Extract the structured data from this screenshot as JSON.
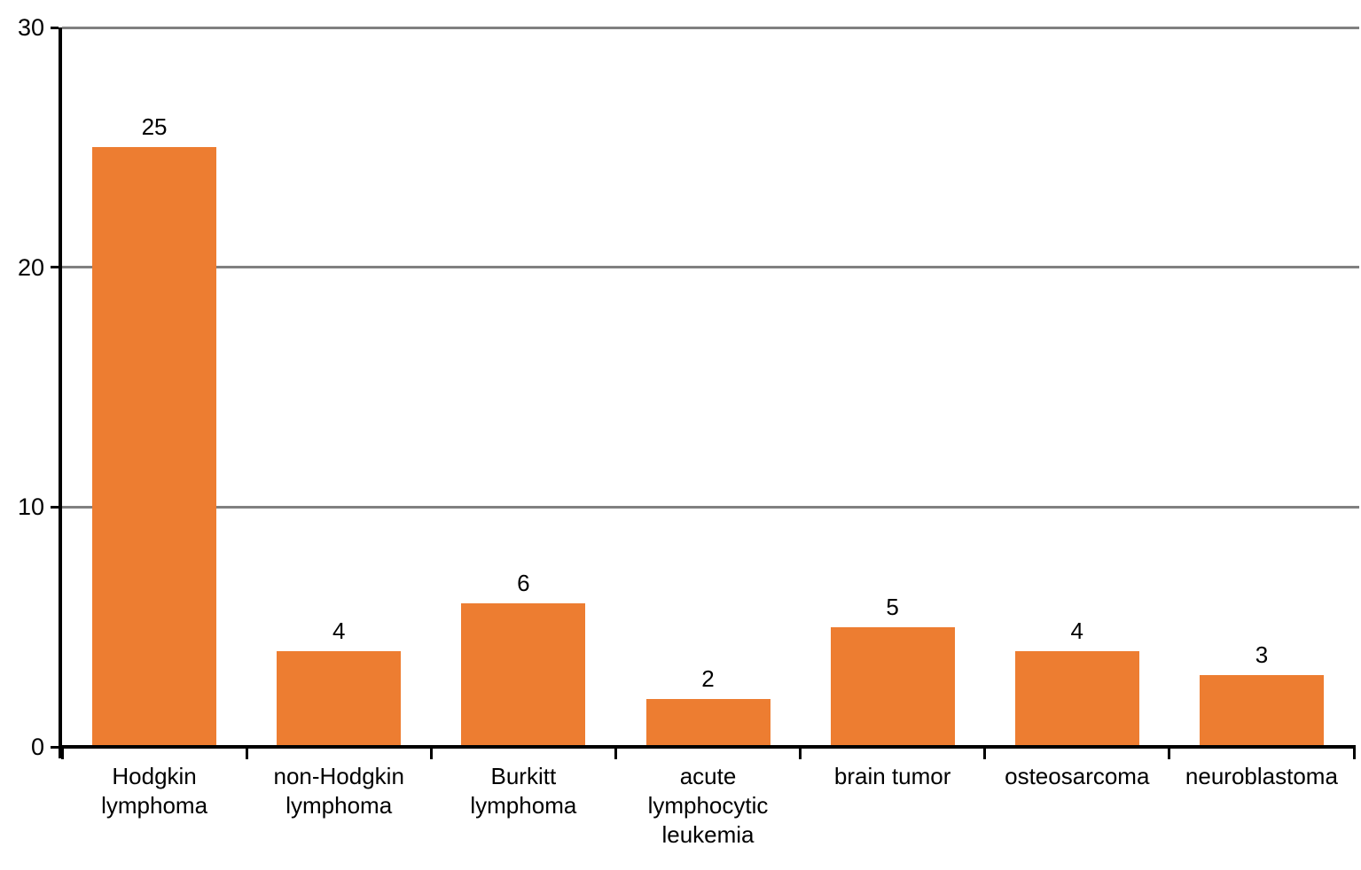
{
  "chart_data": {
    "type": "bar",
    "title": "",
    "xlabel": "",
    "ylabel": "",
    "categories": [
      "Hodgkin lymphoma",
      "non-Hodgkin lymphoma",
      "Burkitt lymphoma",
      "acute lymphocytic leukemia",
      "brain tumor",
      "osteosarcoma",
      "neuroblastoma"
    ],
    "category_labels_multiline": [
      "Hodgkin\nlymphoma",
      "non-Hodgkin\nlymphoma",
      "Burkitt\nlymphoma",
      "acute\nlymphocytic\nleukemia",
      "brain tumor",
      "osteosarcoma",
      "neuroblastoma"
    ],
    "values": [
      25,
      4,
      6,
      2,
      5,
      4,
      3
    ],
    "data_labels": [
      "25",
      "4",
      "6",
      "2",
      "5",
      "4",
      "3"
    ],
    "y_ticks": [
      0,
      10,
      20,
      30
    ],
    "ylim": [
      0,
      30
    ],
    "grid": true,
    "legend": false,
    "colors": {
      "bar": "#ED7D31",
      "gridline": "#808080",
      "axis": "#000000",
      "text": "#000000",
      "background": "#FFFFFF"
    }
  }
}
